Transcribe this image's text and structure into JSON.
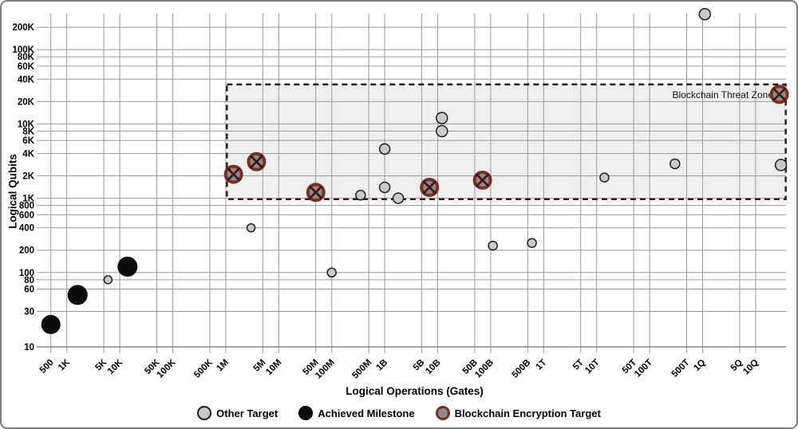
{
  "frame": {
    "background": "#ffffff",
    "border_color": "#7d7d7d"
  },
  "colors": {
    "grid": "#9b9b9b",
    "axis_line": "#6e6e6e",
    "zone_fill": "#efefef",
    "zone_border": "#2b1a14",
    "other_fill": "#c9c9c9",
    "other_stroke": "#1f1f1f",
    "achieved_fill": "#0d0d0d",
    "blockchain_fill": "#8b8b8b",
    "blockchain_ring": "#7a2d26",
    "blockchain_cross": "#40140f"
  },
  "chart_data": {
    "type": "scatter",
    "title": "",
    "xlabel": "Logical Operations (Gates)",
    "ylabel": "Logical Qubits",
    "x_scale": "log",
    "y_scale": "log",
    "grid": true,
    "legend_position": "bottom-center",
    "x_ticks": [
      {
        "label": "500",
        "value": 500
      },
      {
        "label": "1K",
        "value": 1000
      },
      {
        "label": "5K",
        "value": 5000
      },
      {
        "label": "10K",
        "value": 10000
      },
      {
        "label": "50K",
        "value": 50000
      },
      {
        "label": "100K",
        "value": 100000
      },
      {
        "label": "500K",
        "value": 500000
      },
      {
        "label": "1M",
        "value": 1000000
      },
      {
        "label": "5M",
        "value": 5000000
      },
      {
        "label": "10M",
        "value": 10000000
      },
      {
        "label": "50M",
        "value": 50000000
      },
      {
        "label": "100M",
        "value": 100000000
      },
      {
        "label": "500M",
        "value": 500000000
      },
      {
        "label": "1B",
        "value": 1000000000
      },
      {
        "label": "5B",
        "value": 5000000000
      },
      {
        "label": "10B",
        "value": 10000000000
      },
      {
        "label": "50B",
        "value": 50000000000
      },
      {
        "label": "100B",
        "value": 100000000000
      },
      {
        "label": "500B",
        "value": 500000000000
      },
      {
        "label": "1T",
        "value": 1000000000000
      },
      {
        "label": "5T",
        "value": 5000000000000
      },
      {
        "label": "10T",
        "value": 10000000000000
      },
      {
        "label": "50T",
        "value": 50000000000000
      },
      {
        "label": "100T",
        "value": 100000000000000
      },
      {
        "label": "500T",
        "value": 500000000000000
      },
      {
        "label": "1Q",
        "value": 1000000000000000
      },
      {
        "label": "5Q",
        "value": 5000000000000000
      },
      {
        "label": "10Q",
        "value": 10000000000000000
      }
    ],
    "y_ticks": [
      {
        "label": "200K",
        "value": 200000
      },
      {
        "label": "100K",
        "value": 100000
      },
      {
        "label": "80K",
        "value": 80000
      },
      {
        "label": "60K",
        "value": 60000
      },
      {
        "label": "40K",
        "value": 40000
      },
      {
        "label": "20K",
        "value": 20000
      },
      {
        "label": "10K",
        "value": 10000
      },
      {
        "label": "8K",
        "value": 8000
      },
      {
        "label": "6K",
        "value": 6000
      },
      {
        "label": "4K",
        "value": 4000
      },
      {
        "label": "2K",
        "value": 2000
      },
      {
        "label": "1K",
        "value": 1000
      },
      {
        "label": "800",
        "value": 800
      },
      {
        "label": "600",
        "value": 600
      },
      {
        "label": "400",
        "value": 400
      },
      {
        "label": "200",
        "value": 200
      },
      {
        "label": "100",
        "value": 100
      },
      {
        "label": "80",
        "value": 80
      },
      {
        "label": "60",
        "value": 60
      },
      {
        "label": "30",
        "value": 30
      },
      {
        "label": "10",
        "value": 10
      }
    ],
    "zone": {
      "label": "Blockchain Threat Zone",
      "x_min": 1050000,
      "x_max": 37000000000000000,
      "y_min": 970,
      "y_max": 34000
    },
    "series": [
      {
        "name": "Other Target",
        "marker": "gray-circle",
        "points": [
          {
            "x": 6000,
            "y": 80,
            "r": 5
          },
          {
            "x": 3000000,
            "y": 400,
            "r": 5
          },
          {
            "x": 100000000,
            "y": 100,
            "r": 5.5
          },
          {
            "x": 350000000,
            "y": 1100,
            "r": 6
          },
          {
            "x": 1000000000,
            "y": 1400,
            "r": 6.5
          },
          {
            "x": 1800000000,
            "y": 1000,
            "r": 6.5
          },
          {
            "x": 1000000000,
            "y": 4600,
            "r": 6.5
          },
          {
            "x": 12000000000,
            "y": 12000,
            "r": 7
          },
          {
            "x": 12000000000,
            "y": 8000,
            "r": 7
          },
          {
            "x": 110000000000,
            "y": 230,
            "r": 5.5
          },
          {
            "x": 600000000000,
            "y": 250,
            "r": 5.5
          },
          {
            "x": 14000000000000,
            "y": 1900,
            "r": 5.5
          },
          {
            "x": 300000000000000,
            "y": 2900,
            "r": 6
          },
          {
            "x": 1100000000000000,
            "y": 300000,
            "r": 7
          },
          {
            "x": 30000000000000000,
            "y": 2800,
            "r": 7
          }
        ]
      },
      {
        "name": "Achieved Milestone",
        "marker": "black-circle",
        "points": [
          {
            "x": 500,
            "y": 20,
            "r": 11.5
          },
          {
            "x": 1600,
            "y": 50,
            "r": 12
          },
          {
            "x": 14000,
            "y": 120,
            "r": 12
          }
        ]
      },
      {
        "name": "Blockchain Encryption Target",
        "marker": "crossed-circle",
        "points": [
          {
            "x": 1400000,
            "y": 2100,
            "r": 12
          },
          {
            "x": 3800000,
            "y": 3100,
            "r": 12
          },
          {
            "x": 50000000,
            "y": 1200,
            "r": 12
          },
          {
            "x": 7000000000,
            "y": 1400,
            "r": 12
          },
          {
            "x": 70000000000,
            "y": 1750,
            "r": 12
          },
          {
            "x": 28000000000000000,
            "y": 25000,
            "r": 12
          }
        ]
      }
    ]
  }
}
